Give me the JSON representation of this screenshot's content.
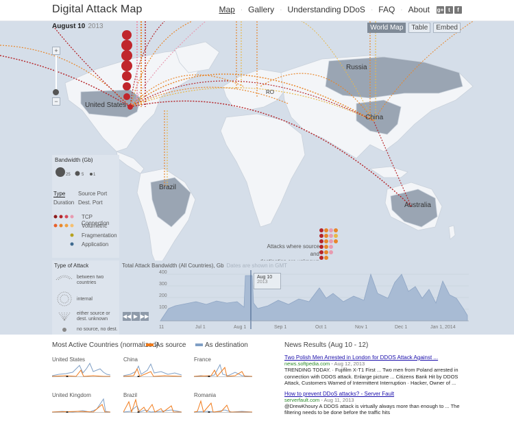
{
  "header": {
    "logo": "Digital Attack Map",
    "nav": [
      "Map",
      "Gallery",
      "Understanding DDoS",
      "FAQ",
      "About"
    ],
    "social": [
      "g+",
      "t",
      "f"
    ]
  },
  "map": {
    "date": "August 10",
    "year": "2013",
    "view_buttons": [
      "World Map",
      "Table",
      "Embed"
    ],
    "zoom_in": "+",
    "zoom_out": "−",
    "countries": [
      "United States",
      "Russia",
      "China",
      "Brazil",
      "Australia",
      "RO"
    ],
    "unknown_note_1": "Attacks where source and",
    "unknown_note_2": "destination are unknown"
  },
  "legend": {
    "bandwidth_title": "Bandwidth (Gb)",
    "bandwidth_values": [
      "25",
      "5",
      "1"
    ],
    "tabs": [
      "Type",
      "Source Port",
      "Duration",
      "Dest. Port"
    ],
    "types": [
      "TCP Connection",
      "Volumetric",
      "Fragmentation",
      "Application"
    ],
    "type_colors": [
      "#8b1a1a",
      "#e8862a",
      "#b6a21f",
      "#3f6a8f"
    ],
    "attack_type_title": "Type of Attack",
    "attack_types": [
      "between two countries",
      "internal",
      "either source or dest. unknown",
      "no source, no dest."
    ]
  },
  "timeline": {
    "title": "Total Attack Bandwidth (All Countries), Gb",
    "subtitle": "Dates are shown in GMT",
    "y_ticks": [
      "400",
      "300",
      "200",
      "100"
    ],
    "x_ticks": [
      "11",
      "Jul 1",
      "Aug 1",
      "Sep 1",
      "Oct 1",
      "Nov 1",
      "Dec 1",
      "Jan 1, 2014"
    ],
    "marker_date": "Aug 10",
    "marker_year": "2013"
  },
  "bottom": {
    "most_active_title": "Most Active Countries (normalized)",
    "as_source": "As source",
    "as_destination": "As destination",
    "source_color": "#f07a1a",
    "dest_color": "#7f9fc5",
    "countries": [
      "United States",
      "China",
      "France",
      "United Kingdom",
      "Brazil",
      "Romania"
    ]
  },
  "news": {
    "title": "News Results (Aug 10 - 12)",
    "items": [
      {
        "link": "Two Polish Men Arrested in London for DDOS Attack Against ...",
        "source": "news.softpedia.com",
        "date": " - Aug 12, 2013",
        "snippet": "TRENDING TODAY. · Fujifilm X-T1 First ... Two men from Poland arrested in connection with DDOS attack. Enlarge picture ... Citizens Bank Hit by DDOS Attack, Customers Warned of Intermittent Interruption · Hacker, Owner of ..."
      },
      {
        "link": "How to prevent DDoS attacks? - Server Fault",
        "source": "serverfault.com",
        "date": " - Aug 11, 2013",
        "snippet": "@DrewKhoury A DDOS attack is virtually always more than enough to ... The filtering needs to be done before the traffic hits"
      }
    ]
  }
}
